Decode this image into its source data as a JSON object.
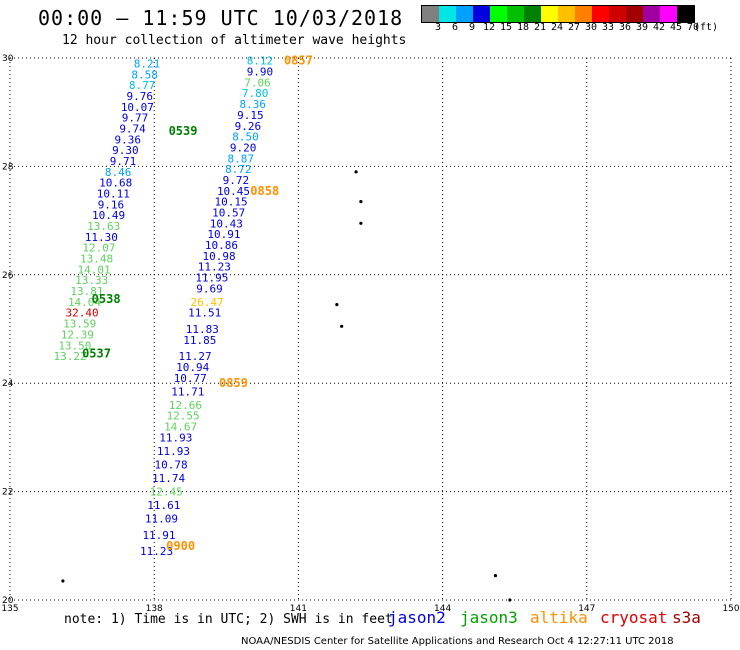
{
  "header": {
    "title": "00:00 – 11:59 UTC 10/03/2018",
    "subtitle": "12 hour collection of altimeter wave heights"
  },
  "colorbar": {
    "labels": [
      "3",
      "6",
      "9",
      "12",
      "15",
      "18",
      "21",
      "24",
      "27",
      "30",
      "33",
      "36",
      "39",
      "42",
      "45",
      "70",
      "(ft)"
    ],
    "colors": [
      "#808080",
      "#00e5e5",
      "#00a0ff",
      "#0000e0",
      "#00ff00",
      "#00c000",
      "#008000",
      "#ffff00",
      "#ffc000",
      "#ff8000",
      "#ff0000",
      "#d00000",
      "#a00000",
      "#a000a0",
      "#ff00ff",
      "#000000"
    ]
  },
  "axes": {
    "x_ticks": [
      "135",
      "138",
      "141",
      "144",
      "147",
      "150"
    ],
    "y_ticks": [
      "30",
      "28",
      "26",
      "24",
      "22",
      "20"
    ]
  },
  "chart_data": {
    "type": "scatter",
    "xlim": [
      135,
      150
    ],
    "ylim": [
      20,
      30
    ],
    "grid": "dotted",
    "tracks": [
      {
        "name": "west-track",
        "points": [
          {
            "x": 137.85,
            "y": 29.9,
            "v": "8.21",
            "color": "#00a0ff"
          },
          {
            "x": 137.8,
            "y": 29.7,
            "v": "8.58",
            "color": "#00a0ff"
          },
          {
            "x": 137.75,
            "y": 29.5,
            "v": "8.77",
            "color": "#00c0e0"
          },
          {
            "x": 137.7,
            "y": 29.3,
            "v": "9.76",
            "color": "#0000e0"
          },
          {
            "x": 137.65,
            "y": 29.1,
            "v": "10.07",
            "color": "#0000e0"
          },
          {
            "x": 137.6,
            "y": 28.9,
            "v": "9.77",
            "color": "#0000e0"
          },
          {
            "x": 137.55,
            "y": 28.7,
            "v": "9.74",
            "color": "#0000e0"
          },
          {
            "x": 137.45,
            "y": 28.5,
            "v": "9.36",
            "color": "#0000e0"
          },
          {
            "x": 137.4,
            "y": 28.3,
            "v": "9.30",
            "color": "#0000e0"
          },
          {
            "x": 137.35,
            "y": 28.1,
            "v": "9.71",
            "color": "#0000e0"
          },
          {
            "x": 137.25,
            "y": 27.9,
            "v": "8.46",
            "color": "#00a0ff"
          },
          {
            "x": 137.2,
            "y": 27.7,
            "v": "10.68",
            "color": "#0000e0"
          },
          {
            "x": 137.15,
            "y": 27.5,
            "v": "10.11",
            "color": "#0000e0"
          },
          {
            "x": 137.1,
            "y": 27.3,
            "v": "9.16",
            "color": "#0000e0"
          },
          {
            "x": 137.05,
            "y": 27.1,
            "v": "10.49",
            "color": "#0000e0"
          },
          {
            "x": 136.95,
            "y": 26.9,
            "v": "13.63",
            "color": "#60d060"
          },
          {
            "x": 136.9,
            "y": 26.7,
            "v": "11.30",
            "color": "#0000e0"
          },
          {
            "x": 136.85,
            "y": 26.5,
            "v": "12.07",
            "color": "#60d060"
          },
          {
            "x": 136.8,
            "y": 26.3,
            "v": "13.48",
            "color": "#60d060"
          },
          {
            "x": 136.75,
            "y": 26.1,
            "v": "14.01",
            "color": "#60d060"
          },
          {
            "x": 136.7,
            "y": 25.9,
            "v": "13.33",
            "color": "#60d060"
          },
          {
            "x": 136.6,
            "y": 25.7,
            "v": "13.81",
            "color": "#60d060"
          },
          {
            "x": 136.55,
            "y": 25.5,
            "v": "14.04",
            "color": "#60d060"
          },
          {
            "x": 136.5,
            "y": 25.3,
            "v": "32.40",
            "color": "#d00000"
          },
          {
            "x": 136.45,
            "y": 25.1,
            "v": "13.59",
            "color": "#60d060"
          },
          {
            "x": 136.4,
            "y": 24.9,
            "v": "12.39",
            "color": "#60d060"
          },
          {
            "x": 136.35,
            "y": 24.7,
            "v": "13.50",
            "color": "#60d060"
          },
          {
            "x": 136.25,
            "y": 24.5,
            "v": "13.22",
            "color": "#60d060"
          }
        ]
      },
      {
        "name": "east-track",
        "points": [
          {
            "x": 140.2,
            "y": 29.95,
            "v": "8.12",
            "color": "#00c0e0"
          },
          {
            "x": 140.2,
            "y": 29.75,
            "v": "9.90",
            "color": "#0000e0"
          },
          {
            "x": 140.15,
            "y": 29.55,
            "v": "7.06",
            "color": "#60d060"
          },
          {
            "x": 140.1,
            "y": 29.35,
            "v": "7.80",
            "color": "#00c0e0"
          },
          {
            "x": 140.05,
            "y": 29.15,
            "v": "8.36",
            "color": "#00a0ff"
          },
          {
            "x": 140.0,
            "y": 28.95,
            "v": "9.15",
            "color": "#0000e0"
          },
          {
            "x": 139.95,
            "y": 28.75,
            "v": "9.26",
            "color": "#0000e0"
          },
          {
            "x": 139.9,
            "y": 28.55,
            "v": "8.50",
            "color": "#00a0ff"
          },
          {
            "x": 139.85,
            "y": 28.35,
            "v": "9.20",
            "color": "#0000e0"
          },
          {
            "x": 139.8,
            "y": 28.15,
            "v": "8.87",
            "color": "#00a0ff"
          },
          {
            "x": 139.75,
            "y": 27.95,
            "v": "8.72",
            "color": "#00a0ff"
          },
          {
            "x": 139.7,
            "y": 27.75,
            "v": "9.72",
            "color": "#0000e0"
          },
          {
            "x": 139.65,
            "y": 27.55,
            "v": "10.45",
            "color": "#0000e0"
          },
          {
            "x": 139.6,
            "y": 27.35,
            "v": "10.15",
            "color": "#0000e0"
          },
          {
            "x": 139.55,
            "y": 27.15,
            "v": "10.57",
            "color": "#0000e0"
          },
          {
            "x": 139.5,
            "y": 26.95,
            "v": "10.43",
            "color": "#0000e0"
          },
          {
            "x": 139.45,
            "y": 26.75,
            "v": "10.91",
            "color": "#0000e0"
          },
          {
            "x": 139.4,
            "y": 26.55,
            "v": "10.86",
            "color": "#0000e0"
          },
          {
            "x": 139.35,
            "y": 26.35,
            "v": "10.98",
            "color": "#0000e0"
          },
          {
            "x": 139.25,
            "y": 26.15,
            "v": "11.23",
            "color": "#0000e0"
          },
          {
            "x": 139.2,
            "y": 25.95,
            "v": "11.95",
            "color": "#0000e0"
          },
          {
            "x": 139.15,
            "y": 25.75,
            "v": "9.69",
            "color": "#0000e0"
          },
          {
            "x": 139.1,
            "y": 25.5,
            "v": "26.47",
            "color": "#ffc000"
          },
          {
            "x": 139.05,
            "y": 25.3,
            "v": "11.51",
            "color": "#0000e0"
          },
          {
            "x": 139.0,
            "y": 25.0,
            "v": "11.83",
            "color": "#0000e0"
          },
          {
            "x": 138.95,
            "y": 24.8,
            "v": "11.85",
            "color": "#0000e0"
          },
          {
            "x": 138.85,
            "y": 24.5,
            "v": "11.27",
            "color": "#0000e0"
          },
          {
            "x": 138.8,
            "y": 24.3,
            "v": "10.94",
            "color": "#0000e0"
          },
          {
            "x": 138.75,
            "y": 24.1,
            "v": "10.77",
            "color": "#0000e0"
          },
          {
            "x": 138.7,
            "y": 23.85,
            "v": "11.71",
            "color": "#0000e0"
          },
          {
            "x": 138.65,
            "y": 23.6,
            "v": "12.66",
            "color": "#60d060"
          },
          {
            "x": 138.6,
            "y": 23.4,
            "v": "12.55",
            "color": "#60d060"
          },
          {
            "x": 138.55,
            "y": 23.2,
            "v": "14.67",
            "color": "#60d060"
          },
          {
            "x": 138.45,
            "y": 23.0,
            "v": "11.93",
            "color": "#0000e0"
          },
          {
            "x": 138.4,
            "y": 22.75,
            "v": "11.93",
            "color": "#0000e0"
          },
          {
            "x": 138.35,
            "y": 22.5,
            "v": "10.78",
            "color": "#0000e0"
          },
          {
            "x": 138.3,
            "y": 22.25,
            "v": "11.74",
            "color": "#0000e0"
          },
          {
            "x": 138.25,
            "y": 22.0,
            "v": "12.45",
            "color": "#60d060"
          },
          {
            "x": 138.2,
            "y": 21.75,
            "v": "11.61",
            "color": "#0000e0"
          },
          {
            "x": 138.15,
            "y": 21.5,
            "v": "11.09",
            "color": "#0000e0"
          },
          {
            "x": 138.1,
            "y": 21.2,
            "v": "11.91",
            "color": "#0000e0"
          },
          {
            "x": 138.05,
            "y": 20.9,
            "v": "11.23",
            "color": "#0000e0"
          }
        ]
      }
    ],
    "time_labels": [
      {
        "x": 138.6,
        "y": 28.65,
        "text": "0539",
        "color": "#008000"
      },
      {
        "x": 137.0,
        "y": 25.55,
        "text": "0538",
        "color": "#008000"
      },
      {
        "x": 136.8,
        "y": 24.55,
        "text": "0537",
        "color": "#008000"
      },
      {
        "x": 141.0,
        "y": 29.95,
        "text": "0857",
        "color": "#ff9000"
      },
      {
        "x": 140.3,
        "y": 27.55,
        "text": "0858",
        "color": "#ff9000"
      },
      {
        "x": 139.65,
        "y": 24.0,
        "text": "0859",
        "color": "#ff9000"
      },
      {
        "x": 138.55,
        "y": 21.0,
        "text": "0900",
        "color": "#ff9000"
      }
    ],
    "islands": [
      {
        "x": 142.2,
        "y": 27.9
      },
      {
        "x": 142.3,
        "y": 27.35
      },
      {
        "x": 142.3,
        "y": 26.95
      },
      {
        "x": 141.8,
        "y": 25.45
      },
      {
        "x": 141.9,
        "y": 25.05
      },
      {
        "x": 136.1,
        "y": 20.35
      },
      {
        "x": 145.1,
        "y": 20.45
      },
      {
        "x": 145.4,
        "y": 20.0
      }
    ]
  },
  "footer": {
    "note": "note: 1) Time is in UTC; 2) SWH is in feet",
    "legend": [
      {
        "label": "jason2",
        "color": "#0000e0"
      },
      {
        "label": "jason3",
        "color": "#00a000"
      },
      {
        "label": "altika",
        "color": "#ff9000"
      },
      {
        "label": "cryosat",
        "color": "#e00000"
      },
      {
        "label": "s3a",
        "color": "#a00000"
      }
    ],
    "credit": "NOAA/NESDIS Center for Satellite Applications and Research    Oct  4 12:27:11 UTC 2018"
  }
}
